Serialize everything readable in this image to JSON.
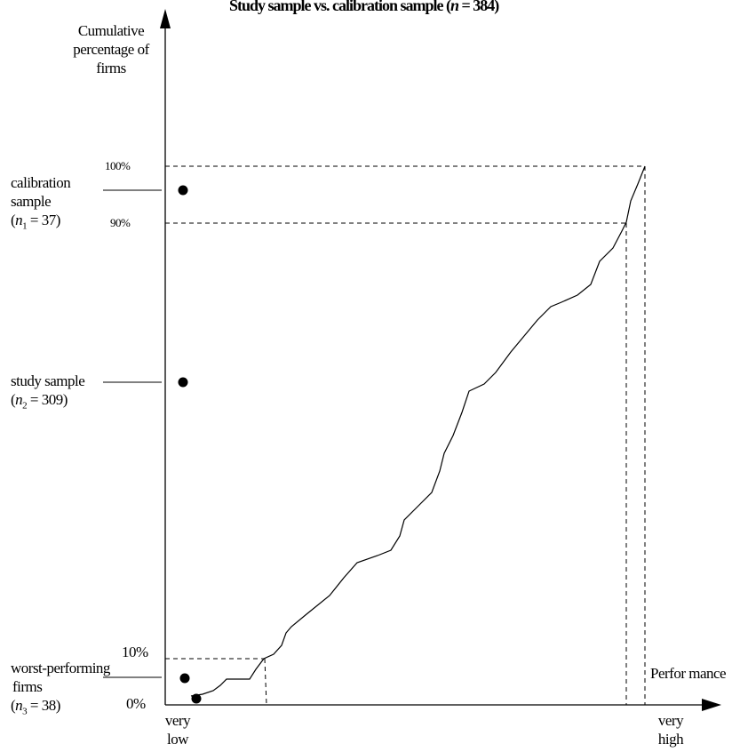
{
  "title": {
    "text_prefix": "Study sample vs. calibration sample (",
    "var": "n",
    "text_suffix": " = 384)"
  },
  "y_axis_label": [
    "Cumulative",
    "percentage of",
    "firms"
  ],
  "x_axis_label": "Perfor mance",
  "x_ticks": {
    "low": [
      "very",
      "low"
    ],
    "high": [
      "very",
      "high"
    ]
  },
  "y_ticks": {
    "p100": "100%",
    "p90": "90%",
    "p10": "10%",
    "p0": "0%"
  },
  "groups": {
    "calibration": {
      "lines": [
        "calibration",
        "sample"
      ],
      "n_var": "n",
      "n_sub": "1",
      "n_value": " = 37)"
    },
    "study": {
      "lines": [
        "study sample"
      ],
      "n_var": "n",
      "n_sub": "2",
      "n_value": " = 309)"
    },
    "worst": {
      "lines": [
        "worst-performing",
        "firms"
      ],
      "n_var": "n",
      "n_sub": "3",
      "n_value": " = 38)"
    }
  },
  "colors": {
    "line": "#000000",
    "background": "#ffffff"
  },
  "curve_points": [
    [
      215,
      783
    ],
    [
      228,
      781
    ],
    [
      240,
      777
    ],
    [
      248,
      771
    ],
    [
      255,
      764
    ],
    [
      270,
      764
    ],
    [
      281,
      764
    ],
    [
      288,
      753
    ],
    [
      297,
      741
    ],
    [
      308,
      736
    ],
    [
      317,
      726
    ],
    [
      322,
      712
    ],
    [
      328,
      705
    ],
    [
      345,
      691
    ],
    [
      371,
      670
    ],
    [
      387,
      650
    ],
    [
      402,
      633
    ],
    [
      425,
      625
    ],
    [
      440,
      619
    ],
    [
      450,
      603
    ],
    [
      455,
      585
    ],
    [
      469,
      571
    ],
    [
      486,
      554
    ],
    [
      495,
      530
    ],
    [
      500,
      510
    ],
    [
      510,
      490
    ],
    [
      520,
      464
    ],
    [
      528,
      440
    ],
    [
      545,
      432
    ],
    [
      558,
      419
    ],
    [
      575,
      396
    ],
    [
      590,
      378
    ],
    [
      605,
      360
    ],
    [
      620,
      345
    ],
    [
      632,
      340
    ],
    [
      650,
      332
    ],
    [
      665,
      320
    ],
    [
      675,
      294
    ],
    [
      690,
      279
    ],
    [
      700,
      260
    ],
    [
      705,
      250
    ],
    [
      710,
      226
    ],
    [
      718,
      207
    ],
    [
      726,
      187
    ]
  ]
}
